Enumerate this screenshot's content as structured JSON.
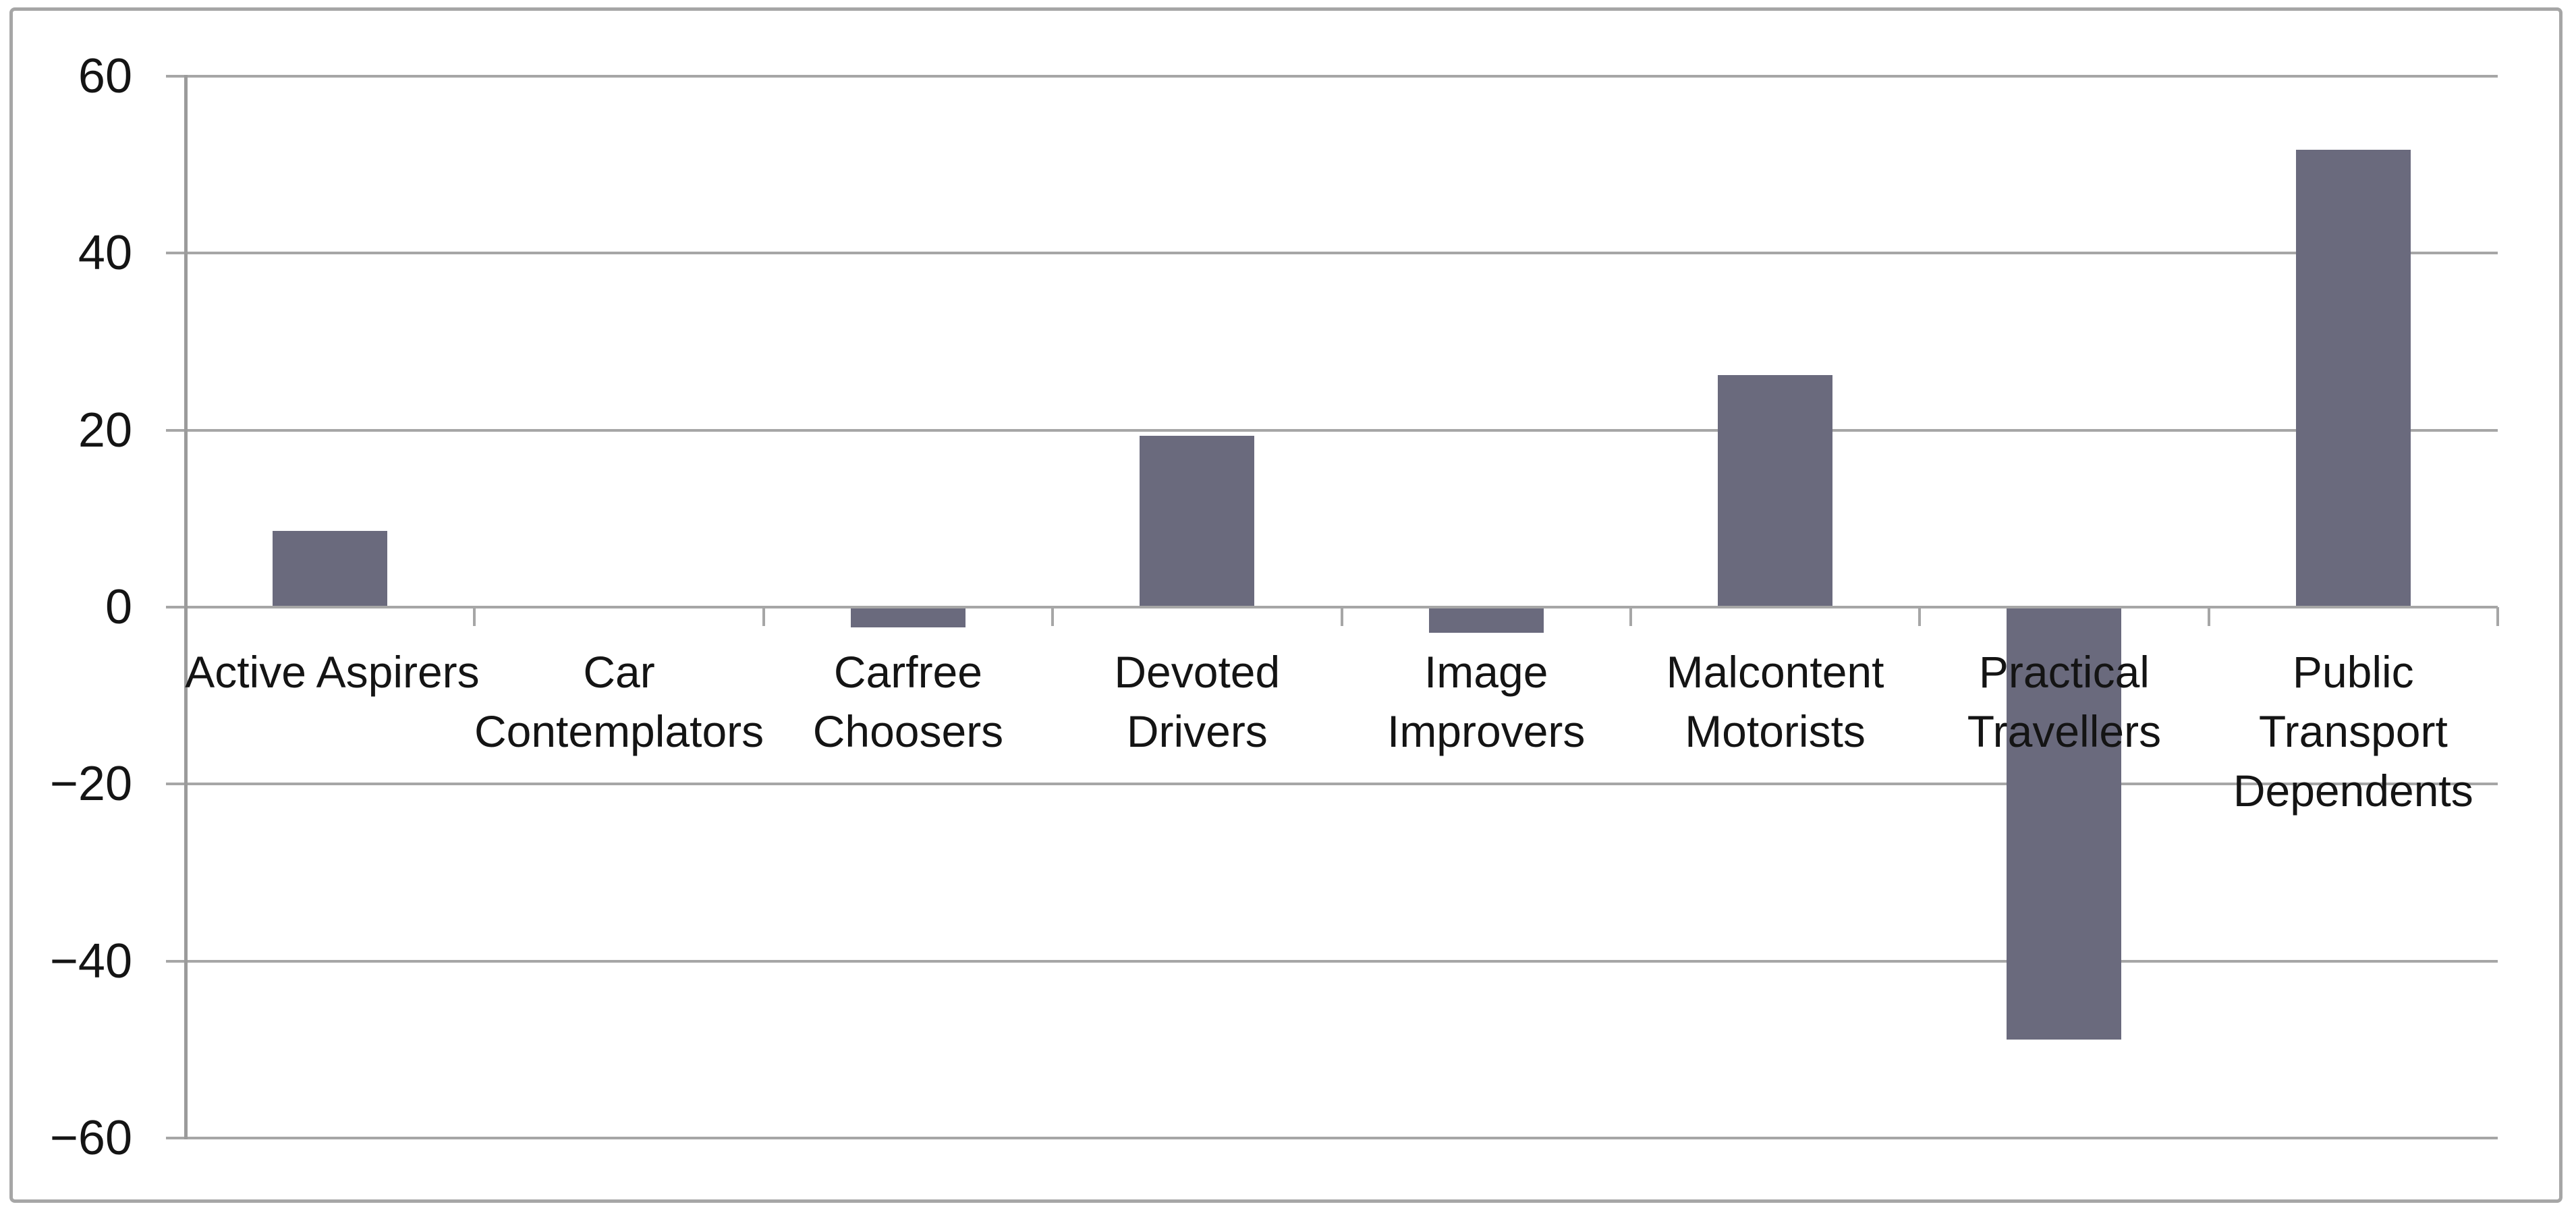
{
  "chart_data": {
    "type": "bar",
    "title": "",
    "xlabel": "",
    "ylabel": "",
    "categories": [
      "Active Aspirers",
      "Car Contemplators",
      "Carfree Choosers",
      "Devoted Drivers",
      "Image Improvers",
      "Malcontent Motorists",
      "Practical Travellers",
      "Public Transport Dependents"
    ],
    "category_lines": [
      [
        "Active Aspirers"
      ],
      [
        "Car",
        "Contemplators"
      ],
      [
        "Carfree",
        "Choosers"
      ],
      [
        "Devoted",
        "Drivers"
      ],
      [
        "Image",
        "Improvers"
      ],
      [
        "Malcontent",
        "Motorists"
      ],
      [
        "Practical",
        "Travellers"
      ],
      [
        "Public",
        "Transport",
        "Dependents"
      ]
    ],
    "values": [
      8.6,
      0,
      -2.3,
      19.4,
      -2.9,
      26.2,
      -48.9,
      51.7
    ],
    "ylim": [
      -60,
      60
    ],
    "ytick_interval": 20,
    "ytick_labels": [
      "60",
      "40",
      "20",
      "0",
      "−20",
      "−40",
      "−60"
    ],
    "grid": true,
    "legend": false,
    "colors": {
      "bar": "#6A6A7D",
      "gridline": "#A6A6A6",
      "axis": "#9B9B9B",
      "frame_border": "#A6A6A6",
      "text": "#141414",
      "background": "#FFFFFF"
    }
  }
}
